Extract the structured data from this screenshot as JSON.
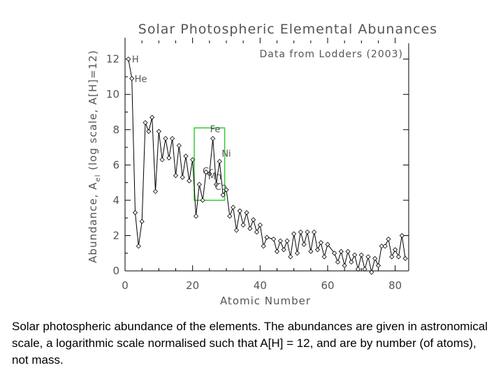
{
  "chart_data": {
    "type": "line",
    "title": "Solar Photospheric Elemental Abunances",
    "annotation": "Data from Lodders (2003)",
    "xlabel": "Atomic Number",
    "ylabel": "Abundance, A_el (log scale, A[H]=12)",
    "ylabel_main": "Abundance, A",
    "ylabel_sub": "el",
    "ylabel_tail": " (log scale, A[H]=12)",
    "xlim": [
      0,
      84
    ],
    "ylim": [
      0,
      12.5
    ],
    "xticks": [
      0,
      20,
      40,
      60,
      80
    ],
    "yticks": [
      0,
      2,
      4,
      6,
      8,
      10,
      12
    ],
    "grid": false,
    "series": [
      {
        "x": [
          1,
          2,
          3,
          4,
          5,
          6,
          7,
          8,
          9,
          10,
          11,
          12,
          13,
          14,
          15,
          16,
          17,
          18,
          19,
          20,
          21,
          22,
          23,
          24,
          25,
          26,
          27,
          28,
          29,
          30,
          31,
          32,
          33,
          34,
          35,
          36,
          37,
          38,
          39,
          40,
          41,
          42,
          44,
          45,
          46,
          47,
          48,
          49,
          50,
          51,
          52,
          53,
          54,
          55,
          56,
          57,
          58,
          59,
          60,
          62,
          63,
          64,
          65,
          66,
          67,
          68,
          69,
          70,
          71,
          72,
          73,
          74,
          75,
          76,
          77,
          78,
          79,
          80,
          81,
          82,
          83
        ],
        "y": [
          12.0,
          10.9,
          3.3,
          1.4,
          2.8,
          8.4,
          7.9,
          8.7,
          4.5,
          7.9,
          6.3,
          7.5,
          6.4,
          7.5,
          5.4,
          7.1,
          5.3,
          6.5,
          5.1,
          6.3,
          3.1,
          4.9,
          4.0,
          5.6,
          5.5,
          7.5,
          4.9,
          6.2,
          4.3,
          4.6,
          3.1,
          3.6,
          2.3,
          3.4,
          2.6,
          3.3,
          2.4,
          2.9,
          2.2,
          2.6,
          1.4,
          1.9,
          1.8,
          1.1,
          1.7,
          1.2,
          1.7,
          0.8,
          2.1,
          1.0,
          2.2,
          1.5,
          2.2,
          1.1,
          2.2,
          1.2,
          1.6,
          0.8,
          1.5,
          1.0,
          0.5,
          1.1,
          0.3,
          1.1,
          0.5,
          0.9,
          0.1,
          0.9,
          0.1,
          0.8,
          -0.1,
          0.7,
          0.3,
          1.4,
          1.4,
          1.8,
          0.8,
          1.2,
          0.8,
          2.0,
          0.7
        ]
      }
    ],
    "highlight": {
      "x_range": [
        20.5,
        29.5
      ],
      "y_range": [
        4.0,
        8.1
      ],
      "color": "#33cc33"
    },
    "point_labels": [
      {
        "text": "H",
        "x": 1,
        "y": 12.0
      },
      {
        "text": "He",
        "x": 2,
        "y": 10.9
      },
      {
        "text": "Fe",
        "x": 26,
        "y": 7.5
      },
      {
        "text": "Ni",
        "x": 28,
        "y": 6.2
      },
      {
        "text": "Cr",
        "x": 24,
        "y": 5.6
      },
      {
        "text": "Mn",
        "x": 25,
        "y": 5.5
      },
      {
        "text": "Co",
        "x": 27,
        "y": 4.9
      }
    ],
    "colors": {
      "line": "#000000",
      "marker_fill": "#ffffff",
      "highlight": "#33cc33"
    }
  },
  "caption": "Solar photospheric abundance of the elements. The abundances are given in astronomical scale, a logarithmic scale normalised such that A[H] = 12, and are by number (of atoms), not mass."
}
